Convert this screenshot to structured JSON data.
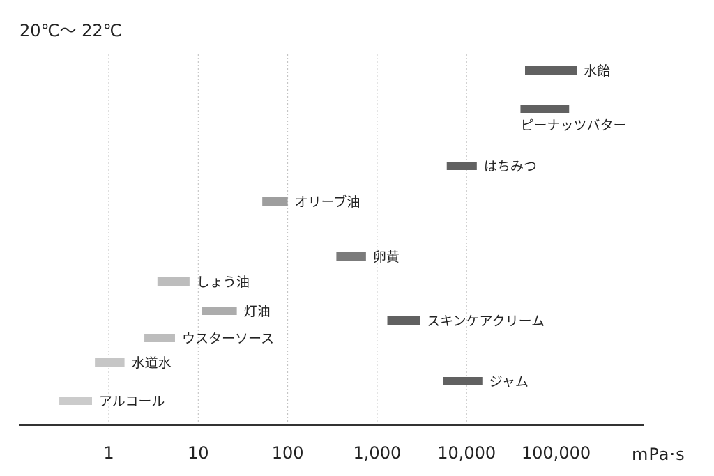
{
  "chart_data": {
    "type": "bar",
    "title": "20℃〜 22℃",
    "xlabel": "mPa·s",
    "x_scale": "log",
    "xlim": [
      0.1,
      1000000
    ],
    "x_ticks": [
      {
        "value": 1,
        "label": "1"
      },
      {
        "value": 10,
        "label": "10"
      },
      {
        "value": 100,
        "label": "100"
      },
      {
        "value": 1000,
        "label": "1,000"
      },
      {
        "value": 10000,
        "label": "10,000"
      },
      {
        "value": 100000,
        "label": "100,000"
      }
    ],
    "grid": true,
    "bars": [
      {
        "label": "水飴",
        "min": 45000,
        "max": 170000,
        "color": "#616161"
      },
      {
        "label": "ピーナッツバター",
        "min": 40000,
        "max": 140000,
        "color": "#616161",
        "label_position": "below"
      },
      {
        "label": "はちみつ",
        "min": 6000,
        "max": 13000,
        "color": "#616161"
      },
      {
        "label": "オリーブ油",
        "min": 52,
        "max": 100,
        "color": "#9e9e9e"
      },
      {
        "label": "卵黄",
        "min": 350,
        "max": 750,
        "color": "#7b7b7b"
      },
      {
        "label": "しょう油",
        "min": 3.5,
        "max": 8,
        "color": "#bdbdbd"
      },
      {
        "label": "灯油",
        "min": 11,
        "max": 27,
        "color": "#acacac"
      },
      {
        "label": "スキンケアクリーム",
        "min": 1300,
        "max": 3000,
        "color": "#616161"
      },
      {
        "label": "ウスターソース",
        "min": 2.5,
        "max": 5.5,
        "color": "#bdbdbd"
      },
      {
        "label": "水道水",
        "min": 0.7,
        "max": 1.5,
        "color": "#c6c6c6"
      },
      {
        "label": "ジャム",
        "min": 5500,
        "max": 15000,
        "color": "#616161"
      },
      {
        "label": "アルコール",
        "min": 0.28,
        "max": 0.65,
        "color": "#cbcbcb"
      }
    ]
  }
}
